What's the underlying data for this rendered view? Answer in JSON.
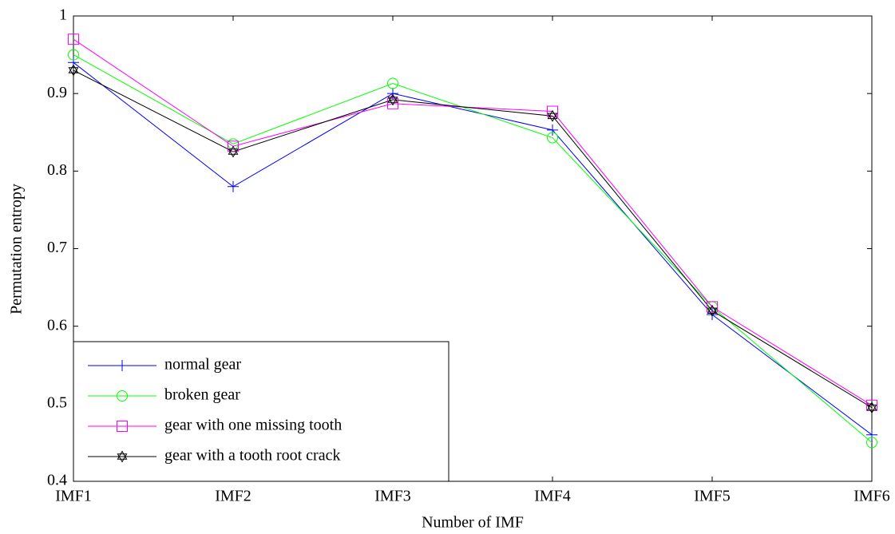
{
  "chart_data": {
    "type": "line",
    "x_label": "Number of IMF",
    "y_label": "Permutation entropy",
    "categories": [
      "IMF1",
      "IMF2",
      "IMF3",
      "IMF4",
      "IMF5",
      "IMF6"
    ],
    "series": [
      {
        "name": "normal gear",
        "color": "#0000ff",
        "marker": "plus",
        "values": [
          0.94,
          0.78,
          0.9,
          0.853,
          0.615,
          0.46
        ]
      },
      {
        "name": "broken gear",
        "color": "#00ff00",
        "marker": "circle",
        "values": [
          0.95,
          0.835,
          0.913,
          0.843,
          0.625,
          0.45
        ]
      },
      {
        "name": "gear with one missing tooth",
        "color": "#ff00ff",
        "marker": "square",
        "values": [
          0.97,
          0.832,
          0.887,
          0.877,
          0.625,
          0.498
        ]
      },
      {
        "name": "gear with a tooth root crack",
        "color": "#000000",
        "marker": "hexagram",
        "values": [
          0.93,
          0.825,
          0.892,
          0.871,
          0.62,
          0.495
        ]
      }
    ],
    "ylim": [
      0.4,
      1
    ],
    "yticks": [
      0.4,
      0.5,
      0.6,
      0.7,
      0.8,
      0.9,
      1
    ],
    "grid": false,
    "legend": "lower left"
  }
}
